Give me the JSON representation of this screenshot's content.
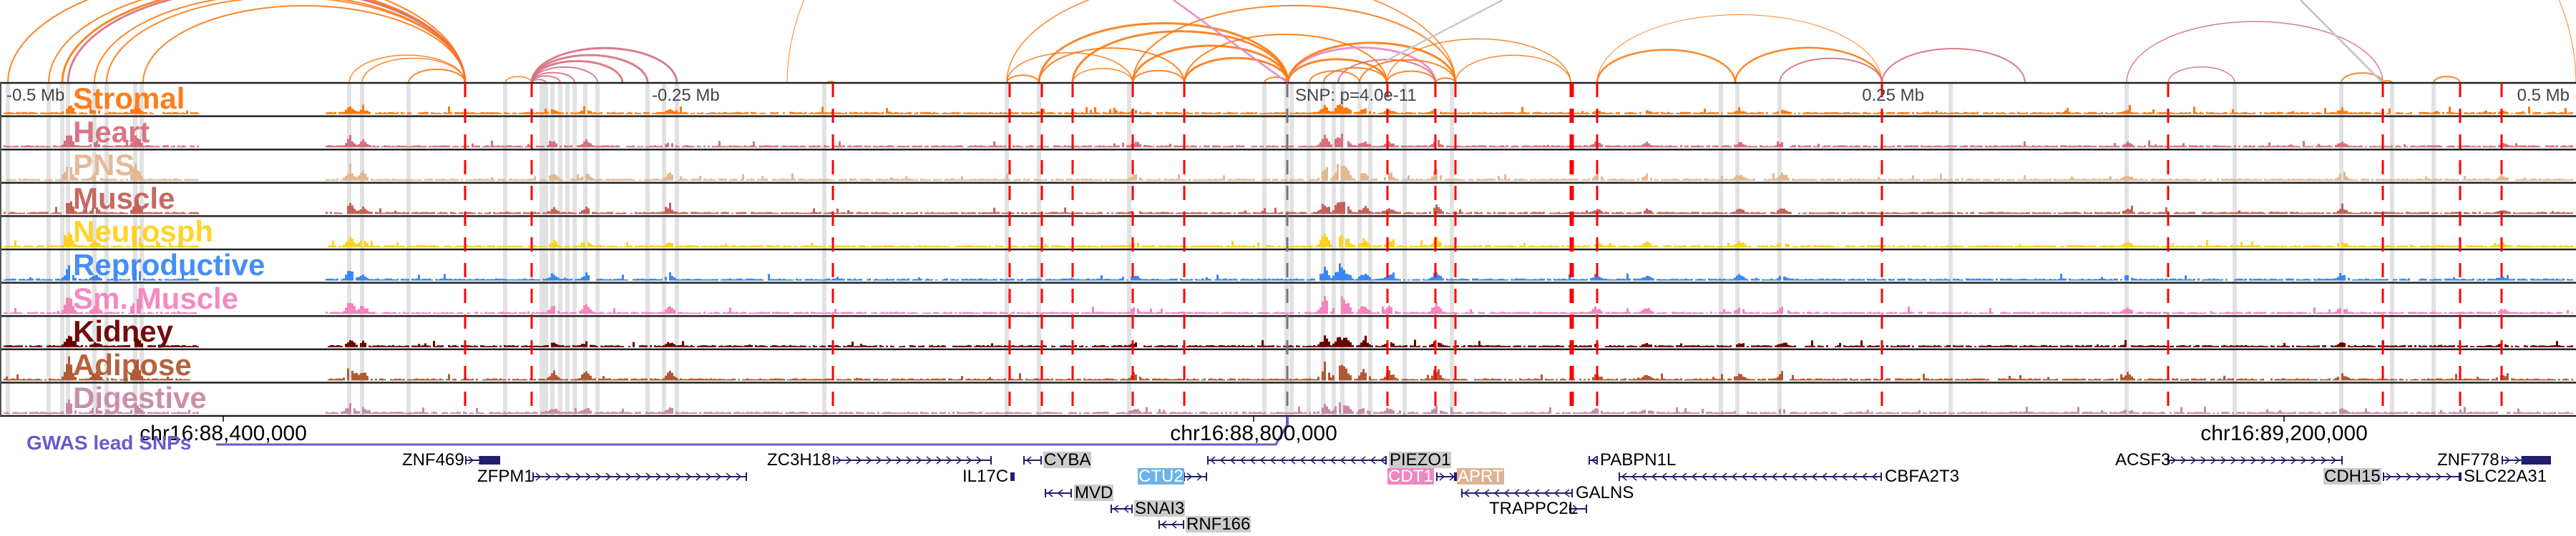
{
  "colors": {
    "red_line": "#ff0000",
    "gray_band": "#e2e2e2",
    "gene": "#1f1f6e",
    "gwas": "#6a5acd"
  },
  "tracks": [
    {
      "label": "Stromal",
      "color": "#ff7810"
    },
    {
      "label": "Heart",
      "color": "#d66f80"
    },
    {
      "label": "PNS",
      "color": "#e2b893"
    },
    {
      "label": "Muscle",
      "color": "#c4625a"
    },
    {
      "label": "Neurosph",
      "color": "#ffd21f"
    },
    {
      "label": "Reproductive",
      "color": "#3a88f7"
    },
    {
      "label": "Sm. Muscle",
      "color": "#f285be"
    },
    {
      "label": "Kidney",
      "color": "#6b0000"
    },
    {
      "label": "Adipose",
      "color": "#b05a35"
    },
    {
      "label": "Digestive",
      "color": "#c889a8"
    }
  ],
  "axis": {
    "left_far": "-0.5 Mb",
    "left_near": "-0.25 Mb",
    "snp": "SNP: p=4.0e-11",
    "right_near": "0.25 Mb",
    "right_far": "0.5 Mb"
  },
  "coordinates": [
    "chr16:88,400,000",
    "chr16:88,800,000",
    "chr16:89,200,000"
  ],
  "gwas_label": "GWAS lead SNPs",
  "genes": [
    {
      "name": "ZNF469",
      "strand": "+",
      "highlight": null
    },
    {
      "name": "ZFPM1",
      "strand": "+",
      "highlight": null
    },
    {
      "name": "ZC3H18",
      "strand": "+",
      "highlight": null
    },
    {
      "name": "CYBA",
      "strand": "-",
      "highlight": "#cccccc"
    },
    {
      "name": "IL17C",
      "strand": "+",
      "highlight": null
    },
    {
      "name": "CTU2",
      "strand": "+",
      "highlight": "#6cb4e8"
    },
    {
      "name": "MVD",
      "strand": "-",
      "highlight": "#cccccc"
    },
    {
      "name": "SNAI3",
      "strand": "-",
      "highlight": "#cccccc"
    },
    {
      "name": "RNF166",
      "strand": "-",
      "highlight": "#cccccc"
    },
    {
      "name": "PIEZO1",
      "strand": "-",
      "highlight": "#cccccc"
    },
    {
      "name": "CDT1",
      "strand": "+",
      "highlight": "#ef86c0"
    },
    {
      "name": "APRT",
      "strand": "-",
      "highlight": "#dcb494"
    },
    {
      "name": "GALNS",
      "strand": "-",
      "highlight": null
    },
    {
      "name": "TRAPPC2L",
      "strand": "+",
      "highlight": null
    },
    {
      "name": "PABPN1L",
      "strand": "-",
      "highlight": null
    },
    {
      "name": "CBFA2T3",
      "strand": "-",
      "highlight": null
    },
    {
      "name": "ACSF3",
      "strand": "+",
      "highlight": null
    },
    {
      "name": "CDH15",
      "strand": "+",
      "highlight": "#cccccc"
    },
    {
      "name": "SLC22A31",
      "strand": "+",
      "highlight": null
    },
    {
      "name": "ZNF778",
      "strand": "+",
      "highlight": null
    }
  ]
}
